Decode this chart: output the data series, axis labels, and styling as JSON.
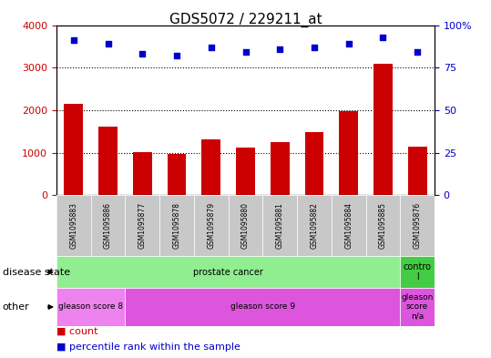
{
  "title": "GDS5072 / 229211_at",
  "samples": [
    "GSM1095883",
    "GSM1095886",
    "GSM1095877",
    "GSM1095878",
    "GSM1095879",
    "GSM1095880",
    "GSM1095881",
    "GSM1095882",
    "GSM1095884",
    "GSM1095885",
    "GSM1095876"
  ],
  "counts": [
    2150,
    1620,
    1010,
    960,
    1310,
    1120,
    1240,
    1480,
    1980,
    3090,
    1150
  ],
  "percentile_ranks": [
    91,
    89,
    83,
    82,
    87,
    84,
    86,
    87,
    89,
    93,
    84
  ],
  "bar_color": "#cc0000",
  "dot_color": "#0000cc",
  "ylim_left": [
    0,
    4000
  ],
  "ylim_right": [
    0,
    100
  ],
  "yticks_left": [
    0,
    1000,
    2000,
    3000,
    4000
  ],
  "ytick_labels_right": [
    "0",
    "25",
    "50",
    "75",
    "100%"
  ],
  "yticks_right": [
    0,
    25,
    50,
    75,
    100
  ],
  "grid_yticks": [
    1000,
    2000,
    3000
  ],
  "disease_state_label": "disease state",
  "other_label": "other",
  "disease_state_groups": [
    {
      "label": "prostate cancer",
      "start": 0,
      "end": 9,
      "color": "#90ee90"
    },
    {
      "label": "contro\nl",
      "start": 10,
      "end": 10,
      "color": "#44cc44"
    }
  ],
  "other_groups": [
    {
      "label": "gleason score 8",
      "start": 0,
      "end": 1,
      "color": "#ee82ee"
    },
    {
      "label": "gleason score 9",
      "start": 2,
      "end": 9,
      "color": "#dd55dd"
    },
    {
      "label": "gleason\nscore\nn/a",
      "start": 10,
      "end": 10,
      "color": "#dd55dd"
    }
  ],
  "legend_count_label": "count",
  "legend_percentile_label": "percentile rank within the sample",
  "bar_color_label": "#cc0000",
  "dot_color_label": "#0000cc",
  "xlabels_bg": "#c8c8c8",
  "plot_bg_color": "#ffffff",
  "right_tick_labels": [
    "0",
    "25",
    "50",
    "75",
    "100%"
  ],
  "bar_width": 0.55
}
